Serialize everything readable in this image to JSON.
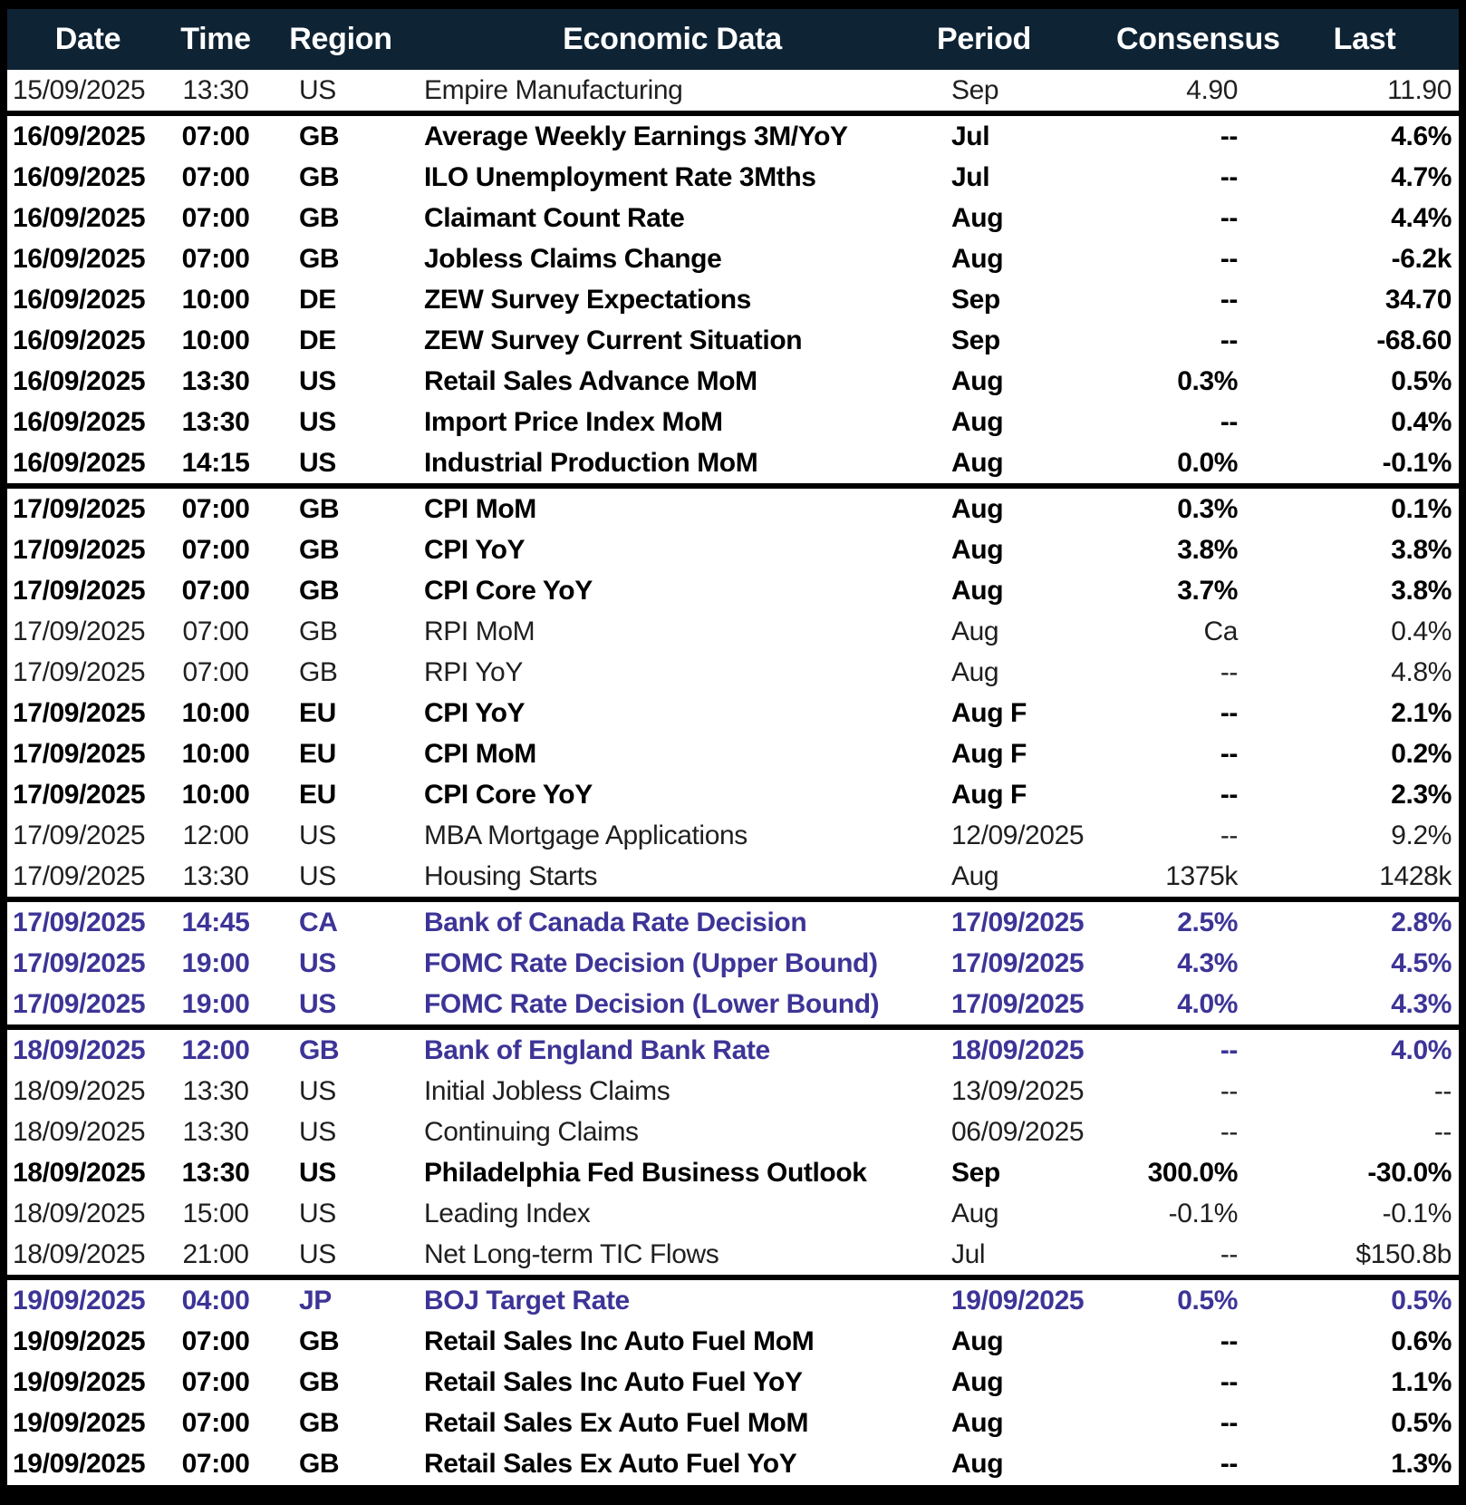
{
  "colors": {
    "header_bg": "#0e2334",
    "header_text": "#ffffff",
    "text_normal": "#1f1f1f",
    "text_bold": "#000000",
    "central_bank_accent": "#3d3497",
    "border": "#000000",
    "row_bg": "#ffffff"
  },
  "chart_data": {
    "type": "table",
    "title": "",
    "columns": [
      "Date",
      "Time",
      "Region",
      "Economic Data",
      "Period",
      "Consensus",
      "Last"
    ],
    "rows": [
      {
        "date": "15/09/2025",
        "time": "13:30",
        "region": "US",
        "event": "Empire Manufacturing",
        "period": "Sep",
        "consensus": "4.90",
        "last": "11.90",
        "style": "normal",
        "sep": false
      },
      {
        "date": "16/09/2025",
        "time": "07:00",
        "region": "GB",
        "event": "Average Weekly Earnings 3M/YoY",
        "period": "Jul",
        "consensus": "--",
        "last": "4.6%",
        "style": "bold",
        "sep": true
      },
      {
        "date": "16/09/2025",
        "time": "07:00",
        "region": "GB",
        "event": "ILO Unemployment Rate 3Mths",
        "period": "Jul",
        "consensus": "--",
        "last": "4.7%",
        "style": "bold",
        "sep": false
      },
      {
        "date": "16/09/2025",
        "time": "07:00",
        "region": "GB",
        "event": "Claimant Count Rate",
        "period": "Aug",
        "consensus": "--",
        "last": "4.4%",
        "style": "bold",
        "sep": false
      },
      {
        "date": "16/09/2025",
        "time": "07:00",
        "region": "GB",
        "event": "Jobless Claims Change",
        "period": "Aug",
        "consensus": "--",
        "last": "-6.2k",
        "style": "bold",
        "sep": false
      },
      {
        "date": "16/09/2025",
        "time": "10:00",
        "region": "DE",
        "event": "ZEW Survey Expectations",
        "period": "Sep",
        "consensus": "--",
        "last": "34.70",
        "style": "bold",
        "sep": false
      },
      {
        "date": "16/09/2025",
        "time": "10:00",
        "region": "DE",
        "event": "ZEW Survey Current Situation",
        "period": "Sep",
        "consensus": "--",
        "last": "-68.60",
        "style": "bold",
        "sep": false
      },
      {
        "date": "16/09/2025",
        "time": "13:30",
        "region": "US",
        "event": "Retail Sales Advance MoM",
        "period": "Aug",
        "consensus": "0.3%",
        "last": "0.5%",
        "style": "bold",
        "sep": false
      },
      {
        "date": "16/09/2025",
        "time": "13:30",
        "region": "US",
        "event": "Import Price Index MoM",
        "period": "Aug",
        "consensus": "--",
        "last": "0.4%",
        "style": "bold",
        "sep": false
      },
      {
        "date": "16/09/2025",
        "time": "14:15",
        "region": "US",
        "event": "Industrial Production MoM",
        "period": "Aug",
        "consensus": "0.0%",
        "last": "-0.1%",
        "style": "bold",
        "sep": false
      },
      {
        "date": "17/09/2025",
        "time": "07:00",
        "region": "GB",
        "event": "CPI MoM",
        "period": "Aug",
        "consensus": "0.3%",
        "last": "0.1%",
        "style": "bold",
        "sep": true
      },
      {
        "date": "17/09/2025",
        "time": "07:00",
        "region": "GB",
        "event": "CPI YoY",
        "period": "Aug",
        "consensus": "3.8%",
        "last": "3.8%",
        "style": "bold",
        "sep": false
      },
      {
        "date": "17/09/2025",
        "time": "07:00",
        "region": "GB",
        "event": "CPI Core YoY",
        "period": "Aug",
        "consensus": "3.7%",
        "last": "3.8%",
        "style": "bold",
        "sep": false
      },
      {
        "date": "17/09/2025",
        "time": "07:00",
        "region": "GB",
        "event": "RPI MoM",
        "period": "Aug",
        "consensus": "Ca",
        "last": "0.4%",
        "style": "normal",
        "sep": false
      },
      {
        "date": "17/09/2025",
        "time": "07:00",
        "region": "GB",
        "event": "RPI YoY",
        "period": "Aug",
        "consensus": "--",
        "last": "4.8%",
        "style": "normal",
        "sep": false
      },
      {
        "date": "17/09/2025",
        "time": "10:00",
        "region": "EU",
        "event": "CPI YoY",
        "period": "Aug F",
        "consensus": "--",
        "last": "2.1%",
        "style": "bold",
        "sep": false
      },
      {
        "date": "17/09/2025",
        "time": "10:00",
        "region": "EU",
        "event": "CPI MoM",
        "period": "Aug F",
        "consensus": "--",
        "last": "0.2%",
        "style": "bold",
        "sep": false
      },
      {
        "date": "17/09/2025",
        "time": "10:00",
        "region": "EU",
        "event": "CPI Core YoY",
        "period": "Aug F",
        "consensus": "--",
        "last": "2.3%",
        "style": "bold",
        "sep": false
      },
      {
        "date": "17/09/2025",
        "time": "12:00",
        "region": "US",
        "event": "MBA Mortgage Applications",
        "period": "12/09/2025",
        "consensus": "--",
        "last": "9.2%",
        "style": "normal",
        "sep": false
      },
      {
        "date": "17/09/2025",
        "time": "13:30",
        "region": "US",
        "event": "Housing Starts",
        "period": "Aug",
        "consensus": "1375k",
        "last": "1428k",
        "style": "normal",
        "sep": false
      },
      {
        "date": "17/09/2025",
        "time": "14:45",
        "region": "CA",
        "event": "Bank of Canada Rate Decision",
        "period": "17/09/2025",
        "consensus": "2.5%",
        "last": "2.8%",
        "style": "cb",
        "sep": true
      },
      {
        "date": "17/09/2025",
        "time": "19:00",
        "region": "US",
        "event": "FOMC Rate Decision (Upper Bound)",
        "period": "17/09/2025",
        "consensus": "4.3%",
        "last": "4.5%",
        "style": "cb",
        "sep": false
      },
      {
        "date": "17/09/2025",
        "time": "19:00",
        "region": "US",
        "event": "FOMC Rate Decision (Lower Bound)",
        "period": "17/09/2025",
        "consensus": "4.0%",
        "last": "4.3%",
        "style": "cb",
        "sep": false
      },
      {
        "date": "18/09/2025",
        "time": "12:00",
        "region": "GB",
        "event": "Bank of England Bank Rate",
        "period": "18/09/2025",
        "consensus": "--",
        "last": "4.0%",
        "style": "cb",
        "sep": true
      },
      {
        "date": "18/09/2025",
        "time": "13:30",
        "region": "US",
        "event": "Initial Jobless Claims",
        "period": "13/09/2025",
        "consensus": "--",
        "last": "--",
        "style": "normal",
        "sep": false
      },
      {
        "date": "18/09/2025",
        "time": "13:30",
        "region": "US",
        "event": "Continuing Claims",
        "period": "06/09/2025",
        "consensus": "--",
        "last": "--",
        "style": "normal",
        "sep": false
      },
      {
        "date": "18/09/2025",
        "time": "13:30",
        "region": "US",
        "event": "Philadelphia Fed Business Outlook",
        "period": "Sep",
        "consensus": "300.0%",
        "last": "-30.0%",
        "style": "bold",
        "sep": false
      },
      {
        "date": "18/09/2025",
        "time": "15:00",
        "region": "US",
        "event": "Leading Index",
        "period": "Aug",
        "consensus": "-0.1%",
        "last": "-0.1%",
        "style": "normal",
        "sep": false
      },
      {
        "date": "18/09/2025",
        "time": "21:00",
        "region": "US",
        "event": "Net Long-term TIC Flows",
        "period": "Jul",
        "consensus": "--",
        "last": "$150.8b",
        "style": "normal",
        "sep": false
      },
      {
        "date": "19/09/2025",
        "time": "04:00",
        "region": "JP",
        "event": "BOJ Target Rate",
        "period": "19/09/2025",
        "consensus": "0.5%",
        "last": "0.5%",
        "style": "cb",
        "sep": true
      },
      {
        "date": "19/09/2025",
        "time": "07:00",
        "region": "GB",
        "event": "Retail Sales Inc Auto Fuel MoM",
        "period": "Aug",
        "consensus": "--",
        "last": "0.6%",
        "style": "bold",
        "sep": false
      },
      {
        "date": "19/09/2025",
        "time": "07:00",
        "region": "GB",
        "event": "Retail Sales Inc Auto Fuel YoY",
        "period": "Aug",
        "consensus": "--",
        "last": "1.1%",
        "style": "bold",
        "sep": false
      },
      {
        "date": "19/09/2025",
        "time": "07:00",
        "region": "GB",
        "event": "Retail Sales Ex Auto Fuel MoM",
        "period": "Aug",
        "consensus": "--",
        "last": "0.5%",
        "style": "bold",
        "sep": false
      },
      {
        "date": "19/09/2025",
        "time": "07:00",
        "region": "GB",
        "event": "Retail Sales Ex Auto Fuel YoY",
        "period": "Aug",
        "consensus": "--",
        "last": "1.3%",
        "style": "bold",
        "sep": false
      }
    ]
  }
}
